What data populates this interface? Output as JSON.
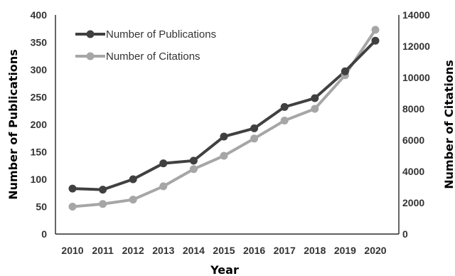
{
  "chart_data": {
    "type": "line",
    "x": [
      2010,
      2011,
      2012,
      2013,
      2014,
      2015,
      2016,
      2017,
      2018,
      2019,
      2020
    ],
    "series": [
      {
        "name": "Number of Publications",
        "axis": "left",
        "color": "#404040",
        "values": [
          83,
          81,
          100,
          129,
          134,
          178,
          193,
          232,
          248,
          297,
          353
        ]
      },
      {
        "name": "Number of Citations",
        "axis": "right",
        "color": "#a6a6a6",
        "values": [
          1750,
          1920,
          2200,
          3050,
          4150,
          5000,
          6100,
          7250,
          8000,
          10150,
          13050
        ]
      }
    ],
    "xlabel": "Year",
    "ylabel": "Number of Publications",
    "y2label": "Number of Citations",
    "ylim": [
      0,
      400
    ],
    "y2lim": [
      0,
      14000
    ],
    "yticks": [
      "0",
      "50",
      "100",
      "150",
      "200",
      "250",
      "300",
      "350",
      "400"
    ],
    "y2ticks": [
      "0",
      "2000",
      "4000",
      "6000",
      "8000",
      "10000",
      "12000",
      "14000"
    ],
    "xticks": [
      "2010",
      "2011",
      "2012",
      "2013",
      "2014",
      "2015",
      "2016",
      "2017",
      "2018",
      "2019",
      "2020"
    ],
    "legend_position": "top-left",
    "grid": false
  }
}
